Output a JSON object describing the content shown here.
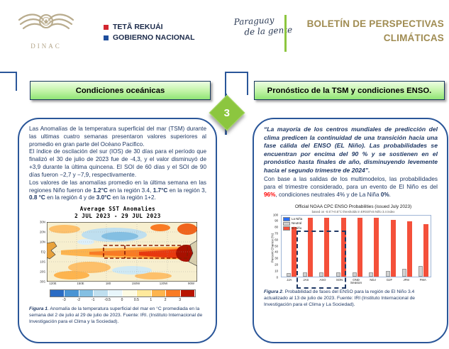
{
  "header": {
    "logo_name": "DINAC",
    "gov": {
      "line1": "TETÃ REKUÁI",
      "line2": "GOBIERNO NACIONAL"
    },
    "script": {
      "line1": "Paraguay",
      "line2": "de la gente"
    },
    "bulletin": {
      "line1": "BOLETÍN DE PERSPECTIVAS",
      "line2": "CLIMÁTICAS"
    },
    "accent_gold": "#a08c52",
    "accent_green": "#8dc63f"
  },
  "step_badge": "3",
  "left_panel": {
    "title": "Condiciones oceánicas",
    "p1": "Las Anomalías de la temperatura superficial del mar (TSM) durante las ultimas cuatro semanas presentaron valores superiores al promedio en gran parte del Océano Pacifico.",
    "p2": "El índice de oscilación del sur (IOS) de 30 días para el período que finalizó el 30 de julio de 2023 fue de -4,3, y el valor disminuyó de +3,9 durante la última quincena. El SOI de 60 días y el SOI de 90 días fueron −2,7 y −7,9, respectivamente.",
    "p3": {
      "t1": "Los valores de las anomalías promedio en la última semana en las regiones Niño fueron de ",
      "v1": "1.2°C",
      "t2": " en la región 3.4, ",
      "v2": "1.7°C",
      "t3": " en la región 3, ",
      "v3": "0.8 °C",
      "t4": " en la región 4 y de ",
      "v4": "3.0°C",
      "t5": " en la región 1+2."
    },
    "caption": {
      "label": "Figura 1",
      "text": ". Anomalía de la temperatura superficial del mar en °C promediada en la semana del 2 de julio al 29 de julio de 2023. Fuente: IRI. (Instituto Internacional de Investigación para el Clima y la Sociedad)."
    }
  },
  "right_panel": {
    "title": "Pronóstico de la TSM y condiciones ENSO.",
    "quote": "“La mayoría de los centros mundiales de predicción del clima predicen la continuidad de una transición hacia una fase cálida del ENSO (EL Niño). Las probabilidades se encuentran por encima del 90 % y se sostienen en el pronóstico hasta finales de año, disminuyendo levemente hacia el segundo trimestre de 2024”.",
    "body": {
      "t1": "Con base a las salidas de los multimodelos, las probabilidades para el trimestre considerado, para un evento de El Niño es del ",
      "v1": "96%",
      "t2": ", condiciones neutrales ",
      "v2": "4%",
      "t3": " y de La Niña ",
      "v3": "0%",
      "t4": "."
    },
    "caption": {
      "label": "Figura 2",
      "text": ". Probabilidad de fases del ENSO para la región de El Niño 3.4 actualizado al 13 de julio de 2023. Fuente: IRI (Instituto Internacional de Investigación para el Clima y La Sociedad)."
    }
  },
  "map_figure": {
    "title1": "Average SST Anomalies",
    "title2": "2 JUL 2023 - 29 JUL 2023",
    "lat_labels": [
      "30N",
      "20N",
      "10N",
      "EQ",
      "10S",
      "20S",
      "30S"
    ],
    "lon_labels": [
      "120E",
      "150E",
      "180",
      "150W",
      "120W",
      "90W"
    ],
    "colorbar": {
      "colors": [
        "#2b6cc4",
        "#4a94d4",
        "#84bfe2",
        "#bfdfef",
        "#e8f6fb",
        "#fdfbe3",
        "#fee99c",
        "#fdb44e",
        "#f97b24",
        "#b81400"
      ],
      "ticks": [
        "-3",
        "-2",
        "-1",
        "-0.5",
        "0",
        "0.5",
        "1",
        "2",
        "3"
      ]
    }
  },
  "chart_data": {
    "type": "bar",
    "title": "Official NOAA CPC ENSO Probabilities (issued July 2023)",
    "subtitle": "based on -0.5°/+0.5°C thresholds in ERSSTv5 Niño 3.4 index",
    "xlabel": "Season",
    "ylabel": "Percent Chance (%)",
    "ylim": [
      0,
      100
    ],
    "ytick_step": 10,
    "grid": false,
    "legend_position": "upper left",
    "categories": [
      "JJA",
      "JAS",
      "ASO",
      "SON",
      "OND",
      "NDJ",
      "DJF",
      "JFM",
      "FMA"
    ],
    "series": [
      {
        "name": "La Niña",
        "color": "#2d6ff2",
        "values": [
          0,
          0,
          0,
          0,
          0,
          0,
          0,
          0,
          0
        ]
      },
      {
        "name": "Neutral",
        "color": "#d2d2d2",
        "values": [
          3,
          4,
          4,
          4,
          4,
          4,
          7,
          10,
          15
        ]
      },
      {
        "name": "El Niño",
        "color": "#f4503a",
        "values": [
          81,
          96,
          96,
          96,
          96,
          96,
          93,
          90,
          85
        ]
      }
    ],
    "highlight": {
      "note": "trimester considered",
      "categories": [
        "JAS",
        "ASO",
        "SON"
      ],
      "top_value": 75
    }
  }
}
